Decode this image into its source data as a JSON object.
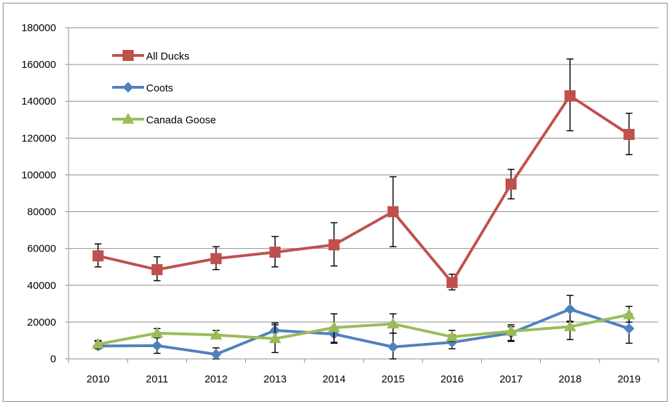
{
  "chart_data": {
    "type": "line",
    "title": "",
    "xlabel": "",
    "ylabel": "",
    "categories": [
      "2010",
      "2011",
      "2012",
      "2013",
      "2014",
      "2015",
      "2016",
      "2017",
      "2018",
      "2019"
    ],
    "ylim": [
      0,
      180000
    ],
    "yticks": [
      0,
      20000,
      40000,
      60000,
      80000,
      100000,
      120000,
      140000,
      160000,
      180000
    ],
    "ytick_labels": [
      "0",
      "20000",
      "40000",
      "60000",
      "80000",
      "100000",
      "120000",
      "140000",
      "160000",
      "180000"
    ],
    "grid": true,
    "legend_position": "top-left",
    "series": [
      {
        "name": "All Ducks",
        "color": "#c0504d",
        "marker": "square",
        "values": [
          56000,
          48500,
          54500,
          58000,
          62000,
          80000,
          41500,
          95000,
          143000,
          122000
        ],
        "error_low": [
          50000,
          42500,
          48500,
          50000,
          50500,
          61000,
          37500,
          87000,
          124000,
          111000
        ],
        "error_high": [
          62500,
          55500,
          61000,
          66500,
          74000,
          99000,
          46000,
          103000,
          163000,
          133500
        ]
      },
      {
        "name": "Coots",
        "color": "#4f81bd",
        "marker": "diamond",
        "values": [
          7000,
          7200,
          2500,
          15500,
          13500,
          6500,
          9000,
          14000,
          27000,
          16500
        ],
        "error_low": [
          5500,
          3000,
          0,
          11000,
          9000,
          0,
          5500,
          10000,
          20000,
          8500
        ],
        "error_high": [
          9500,
          11500,
          6000,
          19500,
          17500,
          14000,
          13000,
          17500,
          34500,
          24500
        ]
      },
      {
        "name": "Canada Goose",
        "color": "#9bbb59",
        "marker": "triangle",
        "values": [
          8000,
          14000,
          13000,
          11000,
          17000,
          19000,
          12000,
          15000,
          17500,
          24000
        ],
        "error_low": [
          5500,
          11500,
          11000,
          3500,
          8500,
          14000,
          9500,
          9500,
          10500,
          20000
        ],
        "error_high": [
          10000,
          16500,
          15500,
          18500,
          24500,
          24500,
          15500,
          18500,
          20500,
          28500
        ]
      }
    ]
  }
}
